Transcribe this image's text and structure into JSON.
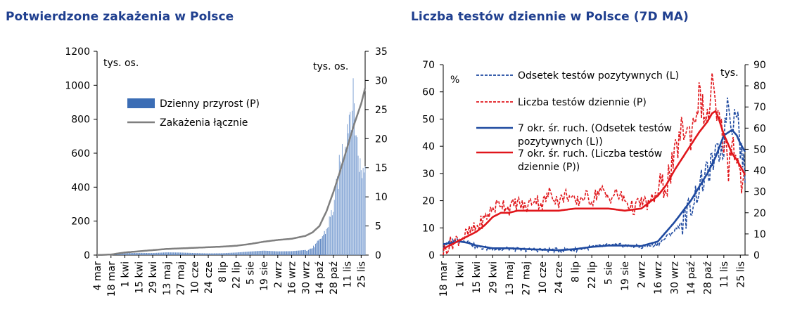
{
  "charts": {
    "left": {
      "title": "Potwierdzone zakażenia w Polsce",
      "unit_left": "tys. os.",
      "unit_right": "tys. os."
    },
    "right": {
      "title": "Liczba testów dziennie w Polsce (7D MA)",
      "unit_left": "%",
      "unit_right": "tys."
    }
  },
  "chart_data": [
    {
      "type": "bar",
      "title": "Potwierdzone zakażenia w Polsce",
      "x_tick_labels": [
        "4 mar",
        "18 mar",
        "1 kwi",
        "15 kwi",
        "29 kwi",
        "13 maj",
        "27 maj",
        "10 cze",
        "24 cze",
        "8 lip",
        "22 lip",
        "5 sie",
        "19 sie",
        "2 wrz",
        "16 wrz",
        "30 wrz",
        "14 paź",
        "28 paź",
        "11 lis",
        "25 lis"
      ],
      "x_range_days": [
        0,
        270
      ],
      "y_left_unit": "tys. os.",
      "y_right_unit": "tys. os.",
      "ylim_left": [
        0,
        1200
      ],
      "ylim_right": [
        0,
        35
      ],
      "yticks_left": [
        0,
        200,
        400,
        600,
        800,
        1000,
        1200
      ],
      "yticks_right": [
        0,
        5,
        10,
        15,
        20,
        25,
        30,
        35
      ],
      "legend_position": "upper-left",
      "series": [
        {
          "name": "Dzienny przyrost (P)",
          "kind": "bar",
          "axis": "left",
          "color": "#2e5ea8",
          "points": [
            [
              0,
              0
            ],
            [
              14,
              2
            ],
            [
              28,
              12
            ],
            [
              42,
              13
            ],
            [
              56,
              12
            ],
            [
              70,
              16
            ],
            [
              84,
              15
            ],
            [
              98,
              12
            ],
            [
              112,
              10
            ],
            [
              126,
              11
            ],
            [
              140,
              15
            ],
            [
              154,
              21
            ],
            [
              168,
              26
            ],
            [
              182,
              22
            ],
            [
              196,
              23
            ],
            [
              210,
              30
            ],
            [
              217,
              45
            ],
            [
              224,
              90
            ],
            [
              231,
              160
            ],
            [
              238,
              300
            ],
            [
              245,
              580
            ],
            [
              252,
              830
            ],
            [
              256,
              980
            ],
            [
              259,
              940
            ],
            [
              262,
              700
            ],
            [
              266,
              520
            ],
            [
              270,
              580
            ]
          ]
        },
        {
          "name": "Zakażenia łącznie",
          "kind": "line",
          "axis": "right",
          "color": "#7f7f7f",
          "points": [
            [
              0,
              0
            ],
            [
              14,
              0.1
            ],
            [
              28,
              0.45
            ],
            [
              42,
              0.65
            ],
            [
              56,
              0.85
            ],
            [
              70,
              1.05
            ],
            [
              84,
              1.15
            ],
            [
              98,
              1.25
            ],
            [
              112,
              1.35
            ],
            [
              126,
              1.45
            ],
            [
              140,
              1.6
            ],
            [
              154,
              1.9
            ],
            [
              168,
              2.3
            ],
            [
              182,
              2.6
            ],
            [
              196,
              2.8
            ],
            [
              210,
              3.3
            ],
            [
              217,
              3.9
            ],
            [
              224,
              5.0
            ],
            [
              231,
              7.5
            ],
            [
              238,
              10.8
            ],
            [
              245,
              14.5
            ],
            [
              252,
              18.5
            ],
            [
              259,
              22.5
            ],
            [
              266,
              26.0
            ],
            [
              270,
              28.7
            ]
          ]
        }
      ]
    },
    {
      "type": "line",
      "title": "Liczba testów dziennie w Polsce (7D MA)",
      "x_tick_labels": [
        "18 mar",
        "1 kwi",
        "15 kwi",
        "29 kwi",
        "13 maj",
        "27 maj",
        "10 cze",
        "24 cze",
        "8 lip",
        "22 lip",
        "5 sie",
        "19 sie",
        "2 wrz",
        "16 wrz",
        "30 wrz",
        "14 paź",
        "28 paź",
        "11 lis",
        "25 lis"
      ],
      "x_range_days": [
        0,
        256
      ],
      "y_left_unit": "%",
      "y_right_unit": "tys.",
      "ylim_left": [
        0,
        70
      ],
      "ylim_right": [
        0,
        90
      ],
      "yticks_left": [
        0,
        10,
        20,
        30,
        40,
        50,
        60,
        70
      ],
      "yticks_right": [
        0,
        10,
        20,
        30,
        40,
        50,
        60,
        70,
        80,
        90
      ],
      "legend_position": "upper-left",
      "series": [
        {
          "name": "Odsetek  testów pozytywnych (L)",
          "axis": "left",
          "style": "dashed",
          "color": "#1f4aa0",
          "points": [
            [
              0,
              3
            ],
            [
              7,
              5
            ],
            [
              14,
              6
            ],
            [
              21,
              5
            ],
            [
              28,
              3
            ],
            [
              35,
              2.5
            ],
            [
              42,
              2.5
            ],
            [
              49,
              2
            ],
            [
              56,
              2.5
            ],
            [
              63,
              2
            ],
            [
              70,
              2
            ],
            [
              84,
              2
            ],
            [
              98,
              1.8
            ],
            [
              112,
              2
            ],
            [
              126,
              3
            ],
            [
              140,
              3.5
            ],
            [
              154,
              3.5
            ],
            [
              168,
              3
            ],
            [
              182,
              4
            ],
            [
              196,
              9
            ],
            [
              203,
              12
            ],
            [
              210,
              18
            ],
            [
              217,
              25
            ],
            [
              224,
              30
            ],
            [
              231,
              36
            ],
            [
              238,
              40
            ],
            [
              241,
              58
            ],
            [
              245,
              48
            ],
            [
              249,
              55
            ],
            [
              252,
              40
            ],
            [
              256,
              30
            ]
          ]
        },
        {
          "name": "Liczba testów dziennie (P)",
          "axis": "right",
          "style": "dashed",
          "color": "#e0161b",
          "points": [
            [
              0,
              2
            ],
            [
              7,
              6
            ],
            [
              14,
              8
            ],
            [
              21,
              10
            ],
            [
              28,
              13
            ],
            [
              35,
              17
            ],
            [
              42,
              22
            ],
            [
              49,
              25
            ],
            [
              56,
              22
            ],
            [
              63,
              25
            ],
            [
              70,
              22
            ],
            [
              77,
              27
            ],
            [
              84,
              24
            ],
            [
              91,
              30
            ],
            [
              98,
              25
            ],
            [
              105,
              29
            ],
            [
              112,
              24
            ],
            [
              119,
              28
            ],
            [
              126,
              26
            ],
            [
              133,
              31
            ],
            [
              140,
              27
            ],
            [
              147,
              29
            ],
            [
              154,
              26
            ],
            [
              161,
              22
            ],
            [
              168,
              25
            ],
            [
              175,
              24
            ],
            [
              182,
              30
            ],
            [
              189,
              34
            ],
            [
              196,
              44
            ],
            [
              200,
              55
            ],
            [
              203,
              60
            ],
            [
              210,
              57
            ],
            [
              217,
              75
            ],
            [
              224,
              62
            ],
            [
              228,
              82
            ],
            [
              231,
              67
            ],
            [
              238,
              55
            ],
            [
              242,
              42
            ],
            [
              245,
              55
            ],
            [
              249,
              48
            ],
            [
              252,
              35
            ],
            [
              256,
              33
            ]
          ]
        },
        {
          "name": "7 okr. śr. ruch. (Odsetek  testów pozytywnych (L))",
          "axis": "left",
          "style": "solid",
          "color": "#1f4aa0",
          "points": [
            [
              0,
              4
            ],
            [
              7,
              4.5
            ],
            [
              14,
              5
            ],
            [
              21,
              4.5
            ],
            [
              28,
              3.5
            ],
            [
              35,
              3
            ],
            [
              42,
              2.5
            ],
            [
              56,
              2.5
            ],
            [
              70,
              2.2
            ],
            [
              84,
              2
            ],
            [
              98,
              1.8
            ],
            [
              112,
              2.2
            ],
            [
              126,
              3
            ],
            [
              140,
              3.5
            ],
            [
              154,
              3.5
            ],
            [
              168,
              3.3
            ],
            [
              182,
              5
            ],
            [
              196,
              12
            ],
            [
              210,
              20
            ],
            [
              224,
              30
            ],
            [
              231,
              36
            ],
            [
              238,
              44
            ],
            [
              245,
              46
            ],
            [
              249,
              44
            ],
            [
              252,
              41
            ],
            [
              256,
              38
            ]
          ]
        },
        {
          "name": "7 okr. śr. ruch. (Liczba testów dziennie (P))",
          "axis": "right",
          "style": "solid",
          "color": "#e0161b",
          "points": [
            [
              0,
              3
            ],
            [
              7,
              5
            ],
            [
              14,
              7
            ],
            [
              21,
              9
            ],
            [
              28,
              11
            ],
            [
              35,
              14
            ],
            [
              42,
              18
            ],
            [
              49,
              20
            ],
            [
              56,
              20
            ],
            [
              63,
              21
            ],
            [
              70,
              21
            ],
            [
              84,
              21
            ],
            [
              98,
              21
            ],
            [
              112,
              22
            ],
            [
              126,
              22
            ],
            [
              140,
              22
            ],
            [
              154,
              21
            ],
            [
              168,
              22
            ],
            [
              182,
              28
            ],
            [
              189,
              33
            ],
            [
              196,
              40
            ],
            [
              203,
              46
            ],
            [
              210,
              52
            ],
            [
              217,
              58
            ],
            [
              224,
              63
            ],
            [
              228,
              67
            ],
            [
              231,
              68
            ],
            [
              234,
              64
            ],
            [
              238,
              57
            ],
            [
              242,
              52
            ],
            [
              245,
              48
            ],
            [
              249,
              45
            ],
            [
              252,
              42
            ],
            [
              256,
              38
            ]
          ]
        }
      ]
    }
  ]
}
